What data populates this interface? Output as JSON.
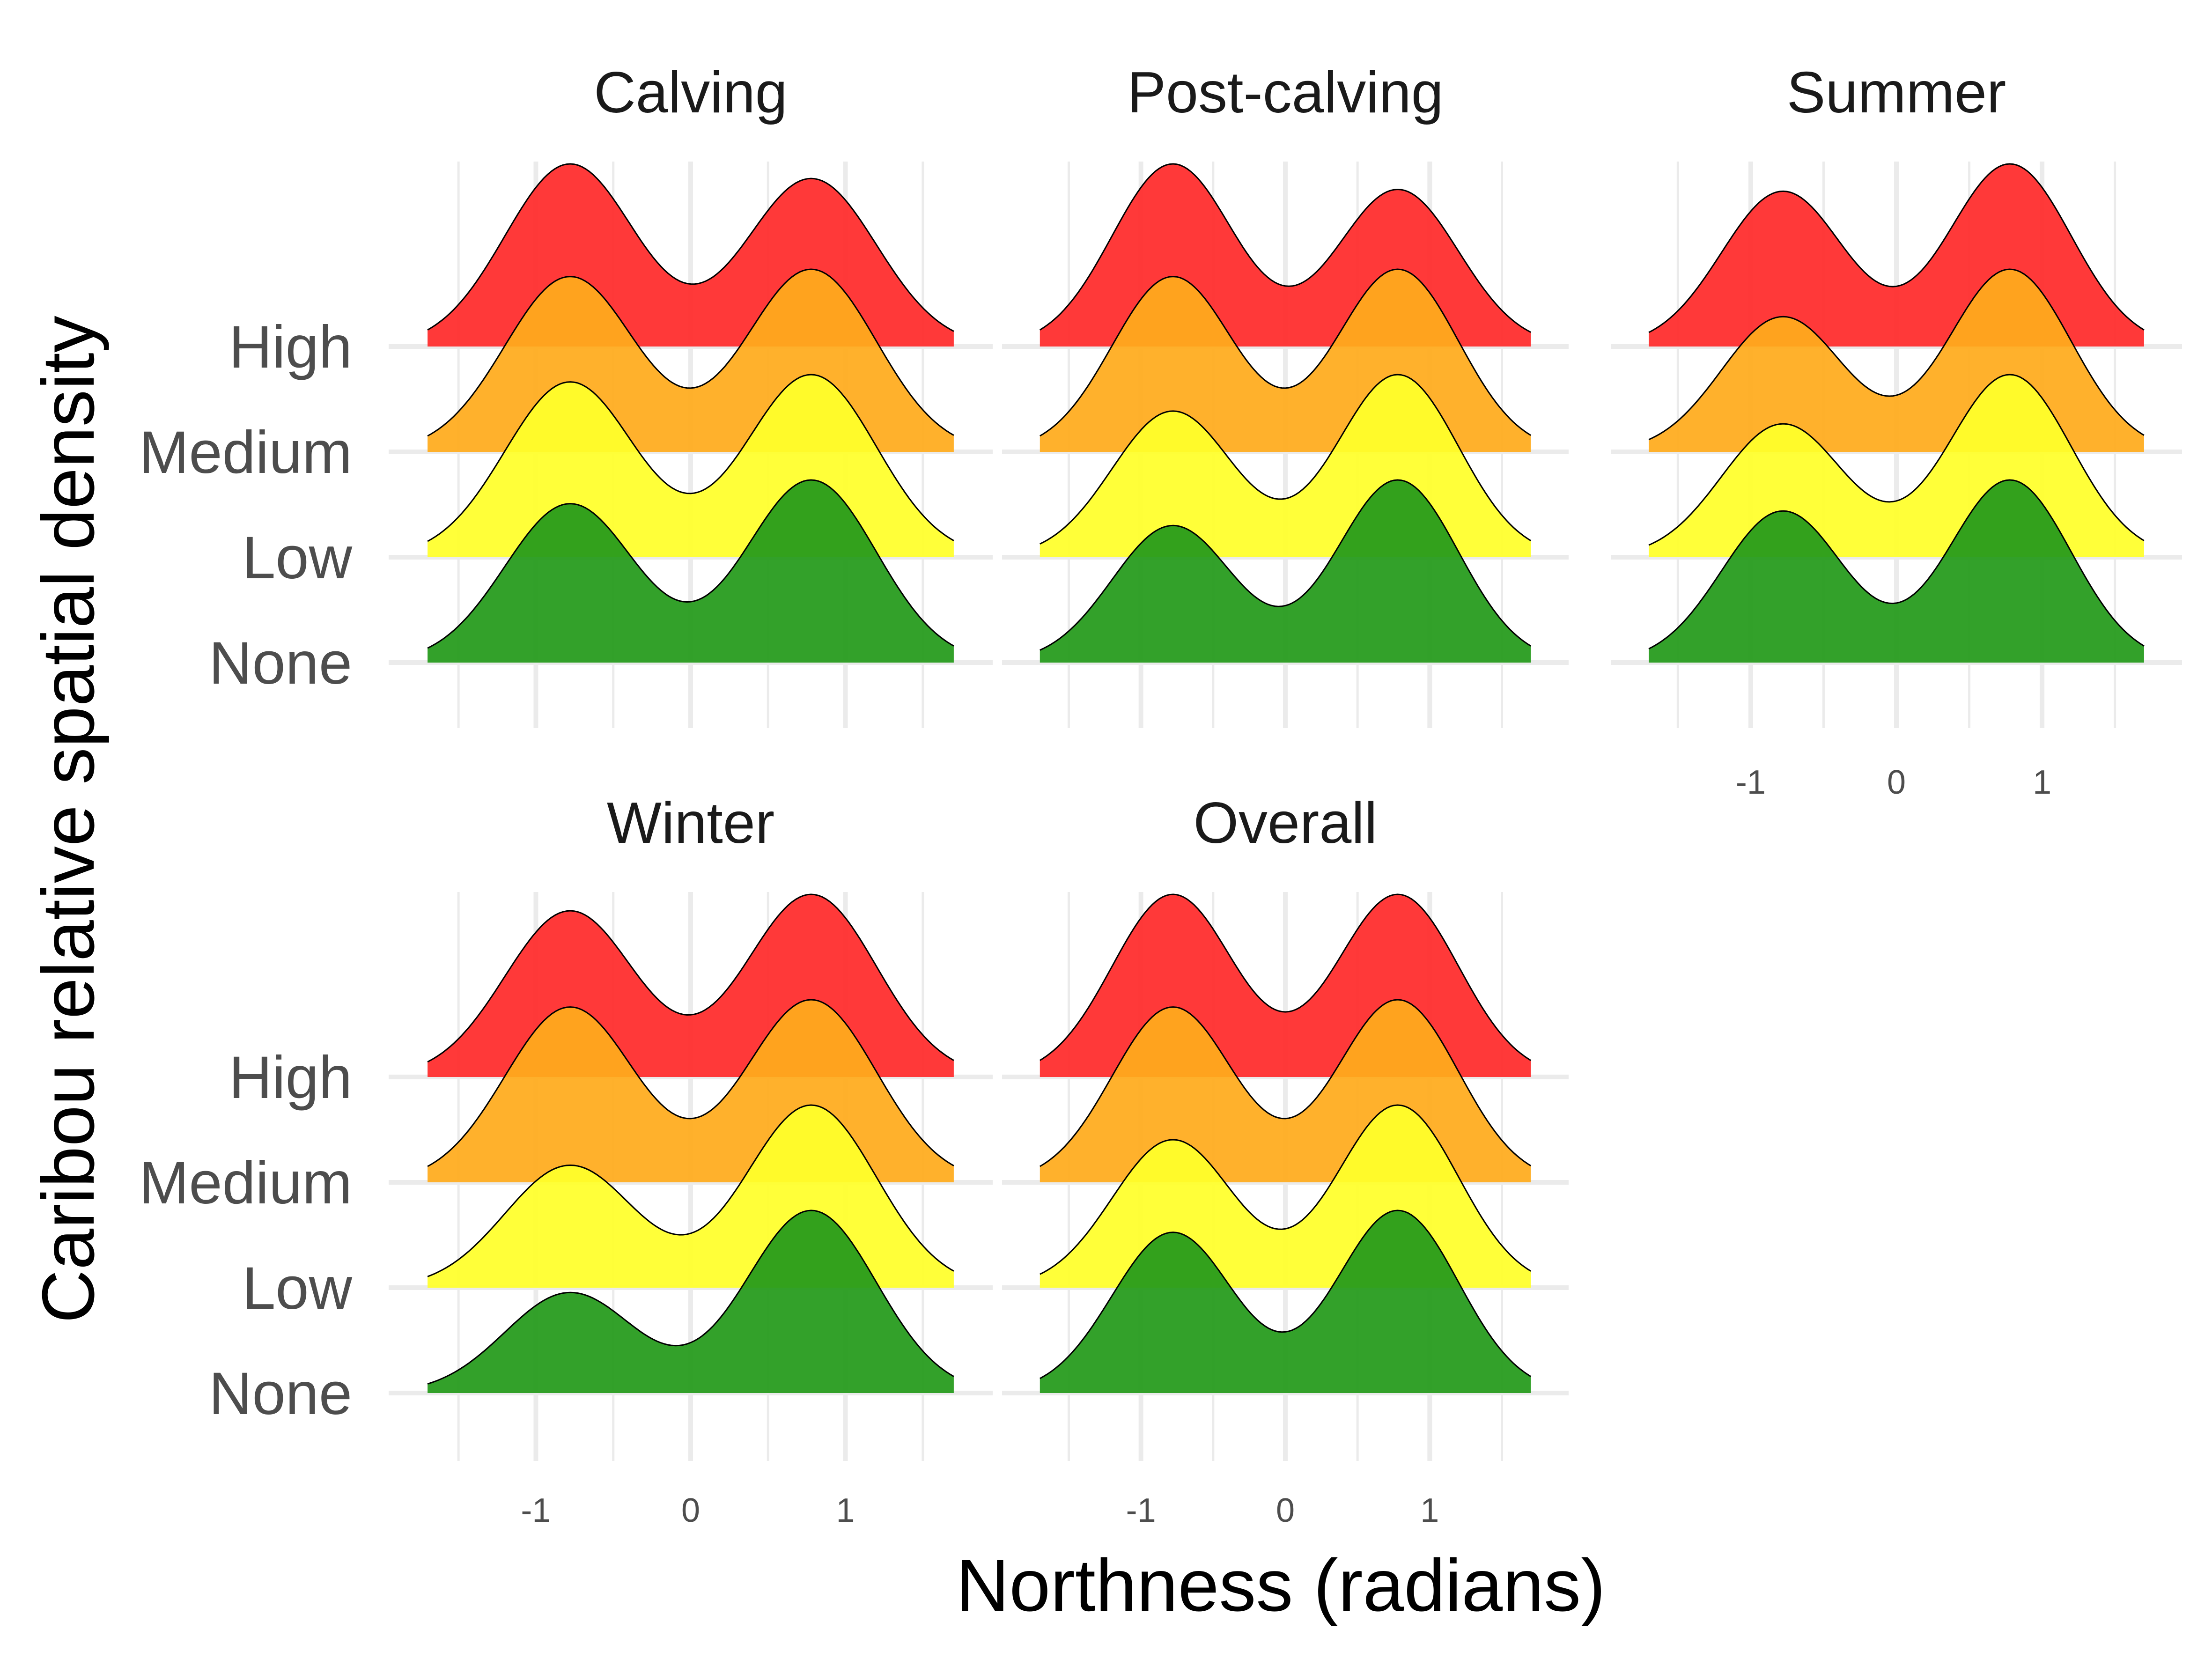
{
  "chart_data": {
    "type": "ridgeline",
    "xlabel": "Northness (radians)",
    "ylabel": "Caribou relative spatial density",
    "x_ticks": [
      -1,
      0,
      1
    ],
    "x_tick_labels": [
      "-1",
      "0",
      "1"
    ],
    "xlim": [
      -1.8,
      1.8
    ],
    "levels": [
      "None",
      "Low",
      "Medium",
      "High"
    ],
    "colors": {
      "High": "#ff2a2a",
      "Medium": "#ffab1c",
      "Low": "#ffff2a",
      "None": "#249a1a"
    },
    "density_shape": {
      "modes_at_x": [
        -0.78,
        0.78
      ],
      "mode_sd": 0.42
    },
    "panels": [
      {
        "name": "Calving",
        "series": [
          {
            "level": "None",
            "left_peak": 0.87,
            "right_peak": 1.0
          },
          {
            "level": "Low",
            "left_peak": 0.96,
            "right_peak": 1.0
          },
          {
            "level": "Medium",
            "left_peak": 0.96,
            "right_peak": 1.0
          },
          {
            "level": "High",
            "left_peak": 1.0,
            "right_peak": 0.92
          }
        ]
      },
      {
        "name": "Post-calving",
        "series": [
          {
            "level": "None",
            "left_peak": 0.75,
            "right_peak": 1.0
          },
          {
            "level": "Low",
            "left_peak": 0.8,
            "right_peak": 1.0
          },
          {
            "level": "Medium",
            "left_peak": 0.96,
            "right_peak": 1.0
          },
          {
            "level": "High",
            "left_peak": 1.0,
            "right_peak": 0.86
          }
        ]
      },
      {
        "name": "Summer",
        "series": [
          {
            "level": "None",
            "left_peak": 0.83,
            "right_peak": 1.0
          },
          {
            "level": "Low",
            "left_peak": 0.73,
            "right_peak": 1.0
          },
          {
            "level": "Medium",
            "left_peak": 0.74,
            "right_peak": 1.0
          },
          {
            "level": "High",
            "left_peak": 0.85,
            "right_peak": 1.0
          }
        ]
      },
      {
        "name": "Winter",
        "series": [
          {
            "level": "None",
            "left_peak": 0.55,
            "right_peak": 1.0
          },
          {
            "level": "Low",
            "left_peak": 0.67,
            "right_peak": 1.0
          },
          {
            "level": "Medium",
            "left_peak": 0.96,
            "right_peak": 1.0
          },
          {
            "level": "High",
            "left_peak": 0.91,
            "right_peak": 1.0
          }
        ]
      },
      {
        "name": "Overall",
        "series": [
          {
            "level": "None",
            "left_peak": 0.88,
            "right_peak": 1.0
          },
          {
            "level": "Low",
            "left_peak": 0.81,
            "right_peak": 1.0
          },
          {
            "level": "Medium",
            "left_peak": 0.96,
            "right_peak": 1.0
          },
          {
            "level": "High",
            "left_peak": 1.0,
            "right_peak": 1.0
          }
        ]
      }
    ]
  }
}
